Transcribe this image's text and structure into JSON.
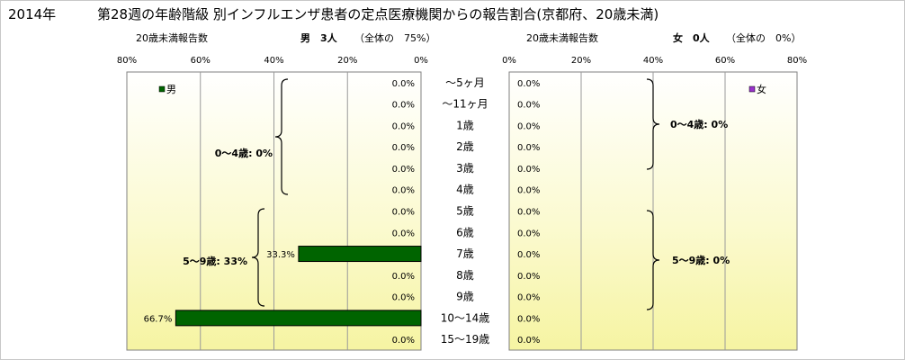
{
  "header": {
    "year": "2014年",
    "title": "第28週の年齢階級 別インフルエンザ患者の定点医療機関からの報告割合(京都府、20歳未満)"
  },
  "panels": {
    "male": {
      "axis_caption": "20歳未満報告数",
      "summary_label": "男　3人",
      "summary_share": "（全体の　75%）",
      "legend": "男",
      "groups": [
        "0～4歳: 0%",
        "5～9歳: 33%"
      ]
    },
    "female": {
      "axis_caption": "20歳未満報告数",
      "summary_label": "女　0人",
      "summary_share": "（全体の　0%）",
      "legend": "女",
      "groups": [
        "0～4歳: 0%",
        "5～9歳: 0%"
      ]
    }
  },
  "chart_data": {
    "type": "bar",
    "orientation": "horizontal",
    "layout": "population-pyramid",
    "categories": [
      "～5ヶ月",
      "～11ヶ月",
      "1歳",
      "2歳",
      "3歳",
      "4歳",
      "5歳",
      "6歳",
      "7歳",
      "8歳",
      "9歳",
      "10～14歳",
      "15～19歳"
    ],
    "series": [
      {
        "name": "男",
        "values": [
          0,
          0,
          0,
          0,
          0,
          0,
          0,
          0,
          33.3,
          0,
          0,
          66.7,
          0
        ],
        "labels": [
          "0.0%",
          "0.0%",
          "0.0%",
          "0.0%",
          "0.0%",
          "0.0%",
          "0.0%",
          "0.0%",
          "33.3%",
          "0.0%",
          "0.0%",
          "66.7%",
          "0.0%"
        ],
        "color": "#006400"
      },
      {
        "name": "女",
        "values": [
          0,
          0,
          0,
          0,
          0,
          0,
          0,
          0,
          0,
          0,
          0,
          0,
          0
        ],
        "labels": [
          "0.0%",
          "0.0%",
          "0.0%",
          "0.0%",
          "0.0%",
          "0.0%",
          "0.0%",
          "0.0%",
          "0.0%",
          "0.0%",
          "0.0%",
          "0.0%",
          "0.0%"
        ],
        "color": "#9932cc"
      }
    ],
    "xlim": [
      0,
      80
    ],
    "xticks": [
      0,
      20,
      40,
      60,
      80
    ],
    "xtick_labels": [
      "0%",
      "20%",
      "40%",
      "60%",
      "80%"
    ],
    "grid": true,
    "legend_position": "top-left (male), top-right (female)",
    "colors": {
      "plot_bg_top": "#ffffff",
      "plot_bg_bottom": "#f6f4a2",
      "bar_border": "#000000"
    }
  }
}
